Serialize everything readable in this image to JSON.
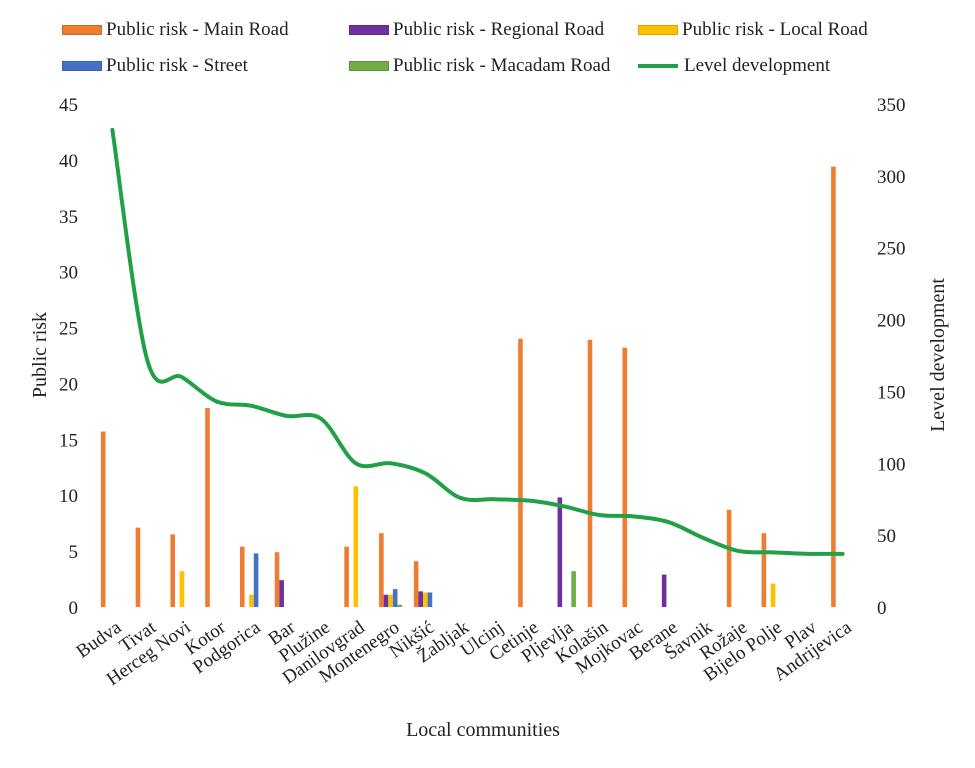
{
  "chart_data": {
    "type": "bar+line",
    "xlabel": "Local communities",
    "ylabel": "Public risk",
    "y2label": "Level development",
    "ylim": [
      0,
      45
    ],
    "yticks": [
      0,
      5,
      10,
      15,
      20,
      25,
      30,
      35,
      40,
      45
    ],
    "y2lim": [
      0,
      350
    ],
    "y2ticks": [
      0,
      50,
      100,
      150,
      200,
      250,
      300,
      350
    ],
    "grid": false,
    "legend_position": "top",
    "categories": [
      "Budva",
      "Tivat",
      "Herceg Novi",
      "Kotor",
      "Podgorica",
      "Bar",
      "Plužine",
      "Danilovgrad",
      "Montenegro",
      "Nikšić",
      "Žabljak",
      "Ulcinj",
      "Cetinje",
      "Pljevlja",
      "Kolašin",
      "Mojkovac",
      "Berane",
      "Šavnik",
      "Rožaje",
      "Bijelo Polje",
      "Plav",
      "Andrijevica"
    ],
    "series": [
      {
        "name": "Public risk - Main Road",
        "color": "#ed7d31",
        "axis": "left",
        "kind": "bar",
        "values": [
          15.7,
          7.1,
          6.5,
          17.8,
          5.4,
          4.9,
          0,
          5.4,
          6.6,
          4.1,
          0,
          0,
          24.0,
          0,
          23.9,
          23.2,
          0,
          0,
          8.7,
          6.6,
          0,
          39.4
        ]
      },
      {
        "name": "Public risk - Regional Road",
        "color": "#7030a0",
        "axis": "left",
        "kind": "bar",
        "values": [
          0,
          0,
          0,
          0,
          0,
          2.4,
          0,
          0,
          1.1,
          1.4,
          0,
          0,
          0,
          9.8,
          0,
          0,
          2.9,
          0,
          0,
          0,
          0,
          0
        ]
      },
      {
        "name": "Public risk - Local Road",
        "color": "#ffc000",
        "axis": "left",
        "kind": "bar",
        "values": [
          0,
          0,
          3.2,
          0,
          1.1,
          0,
          0,
          10.8,
          1.1,
          1.3,
          0,
          0,
          0,
          0,
          0,
          0,
          0,
          0,
          0,
          2.1,
          0,
          0
        ]
      },
      {
        "name": "Public risk - Street",
        "color": "#4472c4",
        "axis": "left",
        "kind": "bar",
        "values": [
          0,
          0,
          0,
          0,
          4.8,
          0,
          0,
          0,
          1.6,
          1.3,
          0,
          0,
          0,
          0,
          0,
          0,
          0,
          0,
          0,
          0,
          0,
          0
        ]
      },
      {
        "name": "Public risk - Macadam Road",
        "color": "#70ad47",
        "axis": "left",
        "kind": "bar",
        "values": [
          0,
          0,
          0,
          0,
          0,
          0,
          0,
          0,
          0.2,
          0,
          0,
          0,
          0,
          3.2,
          0,
          0,
          0,
          0,
          0,
          0,
          0,
          0
        ]
      },
      {
        "name": "Level development",
        "color": "#22a046",
        "axis": "right",
        "kind": "line",
        "values": [
          332,
          172,
          160,
          143,
          140,
          133,
          131,
          100,
          100,
          93,
          76,
          75,
          74,
          70,
          64,
          63,
          59,
          48,
          39,
          38,
          37,
          37
        ]
      }
    ]
  }
}
